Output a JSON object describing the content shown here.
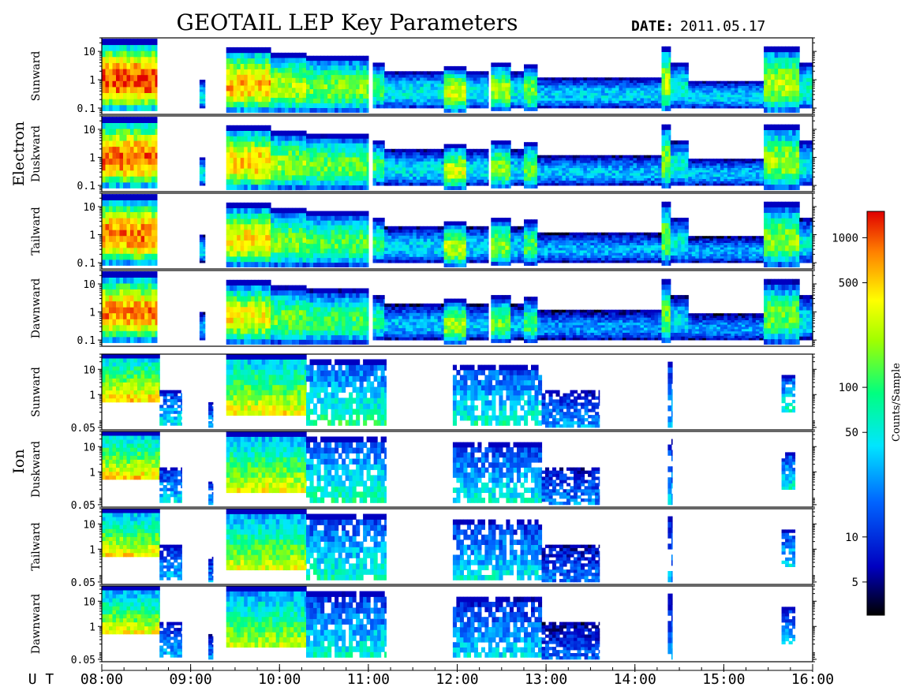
{
  "title": "GEOTAIL LEP Key Parameters",
  "date_label": "DATE:",
  "date_value": "2011.05.17",
  "time_axis": {
    "prefix": "U T",
    "ticks": [
      "08:00",
      "09:00",
      "10:00",
      "11:00",
      "12:00",
      "13:00",
      "14:00",
      "15:00",
      "16:00"
    ]
  },
  "groups": [
    {
      "label": "Electron",
      "panels": [
        "Sunward",
        "Duskward",
        "Tailward",
        "Dawnward"
      ],
      "y_ticks": [
        "10",
        "1",
        "0.1"
      ]
    },
    {
      "label": "Ion",
      "panels": [
        "Sunward",
        "Duskward",
        "Tailward",
        "Dawnward"
      ],
      "y_ticks": [
        "10",
        "1",
        "0.05"
      ]
    }
  ],
  "colorbar": {
    "label": "Counts/Sample",
    "scale": "log",
    "range": [
      3,
      1500
    ],
    "ticks": [
      "1000",
      "500",
      "100",
      "50",
      "10",
      "5"
    ]
  },
  "chart_data": {
    "type": "heatmap",
    "title": "GEOTAIL LEP Key Parameters",
    "date": "2011.05.17",
    "x": {
      "label": "U T",
      "range": [
        "08:00",
        "16:00"
      ],
      "ticks": [
        "08:00",
        "09:00",
        "10:00",
        "11:00",
        "12:00",
        "13:00",
        "14:00",
        "15:00",
        "16:00"
      ]
    },
    "y_scale": "log",
    "color_scale": {
      "label": "Counts/Sample",
      "log": true,
      "range": [
        3,
        1500
      ],
      "ticks": [
        1000,
        500,
        100,
        50,
        10,
        5
      ]
    },
    "electron_y_range": [
      0.06,
      30
    ],
    "ion_y_range": [
      0.04,
      40
    ],
    "electron_events": [
      {
        "start": 8.0,
        "end": 8.62,
        "lo": 0.08,
        "hi": 28,
        "level": 0.95
      },
      {
        "start": 9.1,
        "end": 9.16,
        "lo": 0.1,
        "hi": 1.0,
        "level": 0.45
      },
      {
        "start": 9.4,
        "end": 9.9,
        "lo": 0.07,
        "hi": 14,
        "level": 0.85
      },
      {
        "start": 9.9,
        "end": 10.3,
        "lo": 0.07,
        "hi": 9,
        "level": 0.7
      },
      {
        "start": 10.3,
        "end": 11.0,
        "lo": 0.07,
        "hi": 7,
        "level": 0.65
      },
      {
        "start": 11.05,
        "end": 11.18,
        "lo": 0.1,
        "hi": 4,
        "level": 0.6
      },
      {
        "start": 11.18,
        "end": 11.85,
        "lo": 0.1,
        "hi": 2,
        "level": 0.45
      },
      {
        "start": 11.85,
        "end": 12.1,
        "lo": 0.07,
        "hi": 3,
        "level": 0.75
      },
      {
        "start": 12.1,
        "end": 12.35,
        "lo": 0.1,
        "hi": 2,
        "level": 0.45
      },
      {
        "start": 12.38,
        "end": 12.6,
        "lo": 0.08,
        "hi": 4,
        "level": 0.7
      },
      {
        "start": 12.6,
        "end": 12.75,
        "lo": 0.1,
        "hi": 2,
        "level": 0.45
      },
      {
        "start": 12.75,
        "end": 12.9,
        "lo": 0.08,
        "hi": 3.5,
        "level": 0.65
      },
      {
        "start": 12.9,
        "end": 14.3,
        "lo": 0.1,
        "hi": 1.2,
        "level": 0.4
      },
      {
        "start": 14.3,
        "end": 14.4,
        "lo": 0.08,
        "hi": 15,
        "level": 0.7
      },
      {
        "start": 14.4,
        "end": 14.6,
        "lo": 0.1,
        "hi": 4,
        "level": 0.5
      },
      {
        "start": 14.6,
        "end": 15.45,
        "lo": 0.1,
        "hi": 0.9,
        "level": 0.4
      },
      {
        "start": 15.45,
        "end": 15.85,
        "lo": 0.07,
        "hi": 15,
        "level": 0.7
      },
      {
        "start": 15.85,
        "end": 16.0,
        "lo": 0.1,
        "hi": 4,
        "level": 0.5
      }
    ],
    "ion_events": [
      {
        "start": 8.0,
        "end": 8.65,
        "lo": 0.5,
        "hi": 40,
        "level": 0.85
      },
      {
        "start": 8.65,
        "end": 8.9,
        "lo": 0.06,
        "hi": 1.5,
        "level": 0.45
      },
      {
        "start": 9.2,
        "end": 9.25,
        "lo": 0.05,
        "hi": 0.5,
        "level": 0.4
      },
      {
        "start": 9.4,
        "end": 10.3,
        "lo": 0.15,
        "hi": 40,
        "level": 0.8
      },
      {
        "start": 10.3,
        "end": 11.2,
        "lo": 0.06,
        "hi": 25,
        "level": 0.55
      },
      {
        "start": 11.95,
        "end": 12.95,
        "lo": 0.06,
        "hi": 15,
        "level": 0.5
      },
      {
        "start": 12.95,
        "end": 13.6,
        "lo": 0.05,
        "hi": 1.5,
        "level": 0.35
      },
      {
        "start": 14.37,
        "end": 14.42,
        "lo": 0.05,
        "hi": 20,
        "level": 0.4
      },
      {
        "start": 15.65,
        "end": 15.8,
        "lo": 0.2,
        "hi": 6,
        "level": 0.5
      }
    ]
  }
}
